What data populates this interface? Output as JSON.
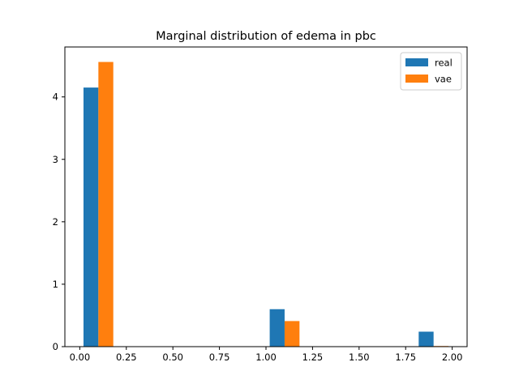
{
  "chart_data": {
    "type": "bar",
    "title": "Marginal distribution of edema in pbc",
    "xlabel": "",
    "ylabel": "",
    "xlim": [
      -0.08,
      2.08
    ],
    "ylim": [
      0,
      4.8
    ],
    "xticks": [
      0.0,
      0.25,
      0.5,
      0.75,
      1.0,
      1.25,
      1.5,
      1.75,
      2.0
    ],
    "xtick_labels": [
      "0.00",
      "0.25",
      "0.50",
      "0.75",
      "1.00",
      "1.25",
      "1.50",
      "1.75",
      "2.00"
    ],
    "yticks": [
      0,
      1,
      2,
      3,
      4
    ],
    "ytick_labels": [
      "0",
      "1",
      "2",
      "3",
      "4"
    ],
    "grid": false,
    "legend_position": "top-right",
    "bin_edges": [
      0.0,
      0.2,
      0.4,
      0.6,
      0.8,
      1.0,
      1.2,
      1.4,
      1.6,
      1.8,
      2.0
    ],
    "series": [
      {
        "name": "real",
        "color": "#1f77b4",
        "values": [
          4.15,
          0,
          0,
          0,
          0,
          0.6,
          0,
          0,
          0,
          0.24
        ]
      },
      {
        "name": "vae",
        "color": "#ff7f0e",
        "values": [
          4.56,
          0,
          0,
          0,
          0,
          0.41,
          0,
          0,
          0,
          0.01
        ]
      }
    ]
  }
}
